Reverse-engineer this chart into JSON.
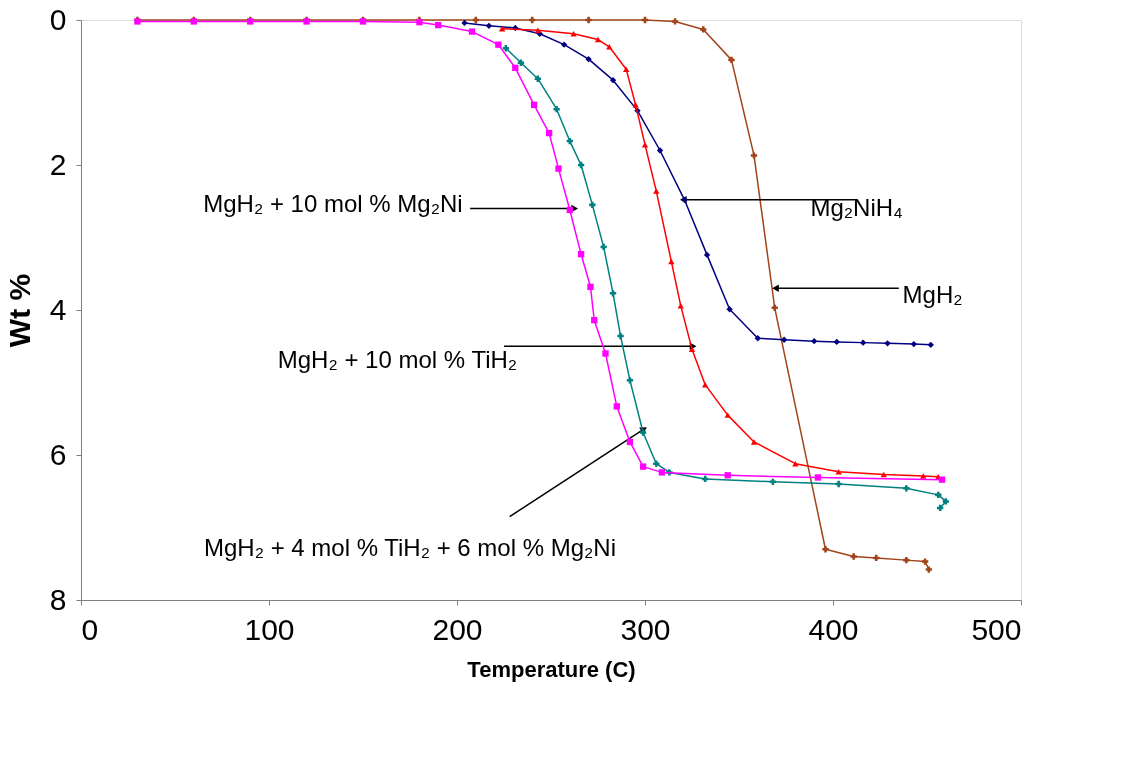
{
  "chart_data": {
    "type": "line",
    "xlabel": "Temperature (C)",
    "ylabel": "Wt %",
    "xlim": [
      0,
      500
    ],
    "xticks": [
      0,
      100,
      200,
      300,
      400,
      500
    ],
    "ylim": [
      8,
      0
    ],
    "yticks": [
      0,
      2,
      4,
      6,
      8
    ],
    "grid": false,
    "line_style": "solid",
    "series": [
      {
        "color": "#a0441a",
        "marker": "cross",
        "x": [
          30,
          60,
          90,
          120,
          150,
          180,
          210,
          240,
          270,
          300,
          316,
          331,
          346,
          358,
          369,
          396,
          411,
          423,
          439,
          449,
          451
        ],
        "values": [
          0,
          0,
          0,
          0,
          0,
          0,
          0,
          0,
          0,
          0,
          0.02,
          0.13,
          0.55,
          1.87,
          3.97,
          7.3,
          7.4,
          7.42,
          7.45,
          7.47,
          7.58
        ]
      },
      {
        "color": "#000080",
        "marker": "diamond",
        "x": [
          204,
          217,
          231,
          244,
          257,
          270,
          283,
          296,
          308,
          321,
          333,
          345,
          360,
          374,
          390,
          402,
          416,
          429,
          443,
          452
        ],
        "values": [
          0.04,
          0.08,
          0.11,
          0.19,
          0.34,
          0.54,
          0.83,
          1.25,
          1.8,
          2.48,
          3.24,
          3.99,
          4.39,
          4.41,
          4.43,
          4.44,
          4.45,
          4.46,
          4.47,
          4.48
        ]
      },
      {
        "color": "#ff0000",
        "marker": "triangle",
        "x": [
          224,
          243,
          262,
          275,
          281,
          290,
          295,
          300,
          306,
          314,
          319,
          325,
          332,
          344,
          358,
          380,
          403,
          427,
          448,
          456
        ],
        "values": [
          0.12,
          0.14,
          0.19,
          0.27,
          0.37,
          0.68,
          1.17,
          1.72,
          2.36,
          3.33,
          3.94,
          4.54,
          5.03,
          5.45,
          5.82,
          6.12,
          6.23,
          6.27,
          6.29,
          6.3
        ]
      },
      {
        "color": "#008080",
        "marker": "cross",
        "x": [
          226,
          234,
          243,
          253,
          260,
          266,
          272,
          278,
          283,
          287,
          292,
          299,
          306,
          313,
          332,
          368,
          403,
          439,
          456,
          460,
          457
        ],
        "values": [
          0.39,
          0.59,
          0.81,
          1.23,
          1.67,
          2.0,
          2.55,
          3.13,
          3.77,
          4.36,
          4.97,
          5.69,
          6.12,
          6.24,
          6.33,
          6.37,
          6.4,
          6.46,
          6.55,
          6.64,
          6.73
        ]
      },
      {
        "color": "#ff00ff",
        "marker": "square",
        "x": [
          30,
          60,
          90,
          120,
          150,
          180,
          190,
          208,
          222,
          231,
          241,
          249,
          254,
          260,
          266,
          271,
          273,
          279,
          285,
          292,
          299,
          309,
          344,
          392,
          458
        ],
        "values": [
          0.02,
          0.02,
          0.02,
          0.02,
          0.02,
          0.03,
          0.07,
          0.16,
          0.34,
          0.66,
          1.17,
          1.56,
          2.05,
          2.62,
          3.23,
          3.68,
          4.14,
          4.6,
          5.33,
          5.82,
          6.16,
          6.24,
          6.28,
          6.31,
          6.34
        ]
      }
    ],
    "annotations": [
      {
        "text": "MgH₂ + 10 mol % Mg₂Ni",
        "x": 262,
        "y": 2.6
      },
      {
        "text": "Mg₂NiH₄",
        "x": 321,
        "y": 2.48
      },
      {
        "text": "MgH₂",
        "x": 370,
        "y": 3.7
      },
      {
        "text": "MgH₂ + 10 mol % TiH₂",
        "x": 325,
        "y": 4.5
      },
      {
        "text": "MgH₂ + 4 mol % TiH₂ + 6 mol % Mg₂Ni",
        "x": 299,
        "y": 5.65
      }
    ]
  }
}
